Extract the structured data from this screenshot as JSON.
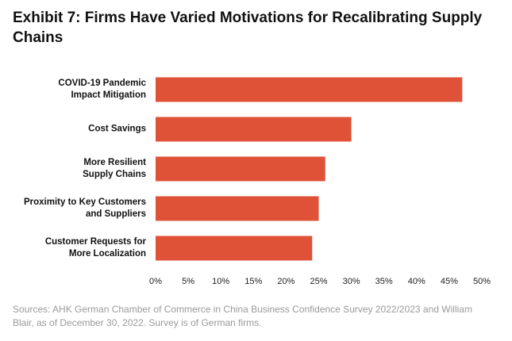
{
  "chart_data": {
    "type": "barh",
    "title": "Exhibit 7: Firms Have Varied Motivations for Recalibrating Supply Chains",
    "categories": [
      "COVID-19 Pandemic\nImpact Mitigation",
      "Cost Savings",
      "More Resilient\nSupply Chains",
      "Proximity to Key Customers\nand Suppliers",
      "Customer Requests for\nMore Localization"
    ],
    "values": [
      47,
      30,
      26,
      25,
      24
    ],
    "color": "#df5238",
    "xlim": [
      0,
      50
    ],
    "xticks": [
      {
        "value": 0,
        "label": "0%"
      },
      {
        "value": 5,
        "label": "5%"
      },
      {
        "value": 10,
        "label": "10%"
      },
      {
        "value": 15,
        "label": "15%"
      },
      {
        "value": 20,
        "label": "20%"
      },
      {
        "value": 25,
        "label": "25%"
      },
      {
        "value": 30,
        "label": "30%"
      },
      {
        "value": 35,
        "label": "35%"
      },
      {
        "value": 40,
        "label": "40%"
      },
      {
        "value": 45,
        "label": "45%"
      },
      {
        "value": 50,
        "label": "50%"
      }
    ],
    "grid": false,
    "note": "Sources: AHK German Chamber of Commerce in China Business Confidence Survey 2022/2023 and William Blair, as of December 30, 2022. Survey is of German firms."
  }
}
